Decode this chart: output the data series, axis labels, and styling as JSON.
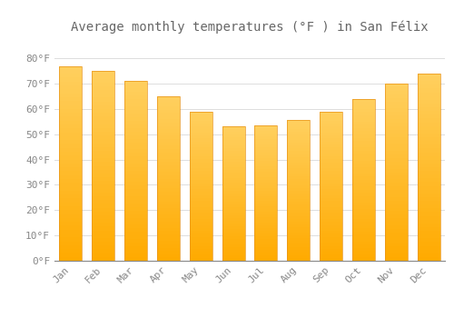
{
  "title": "Average monthly temperatures (°F ) in San Félix",
  "months": [
    "Jan",
    "Feb",
    "Mar",
    "Apr",
    "May",
    "Jun",
    "Jul",
    "Aug",
    "Sep",
    "Oct",
    "Nov",
    "Dec"
  ],
  "values": [
    77,
    75,
    71,
    65,
    59,
    53,
    53.5,
    55.5,
    59,
    64,
    70,
    74
  ],
  "bar_color_bottom": "#FFAA00",
  "bar_color_top": "#FFD060",
  "bar_edge_color": "#E8941A",
  "background_color": "#FFFFFF",
  "grid_color": "#DDDDDD",
  "text_color": "#888888",
  "title_color": "#666666",
  "ylim": [
    0,
    88
  ],
  "yticks": [
    0,
    10,
    20,
    30,
    40,
    50,
    60,
    70,
    80
  ],
  "title_fontsize": 10,
  "tick_fontsize": 8,
  "bar_width": 0.7
}
